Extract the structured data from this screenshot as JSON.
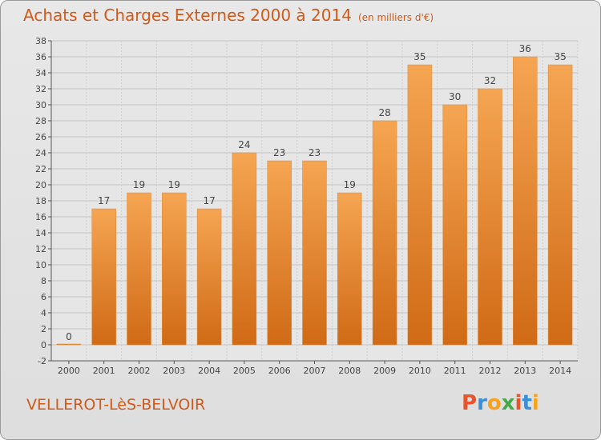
{
  "chart_data": {
    "type": "bar",
    "title": "Achats et Charges Externes 2000 à 2014",
    "subtitle": "(en milliers d'€)",
    "categories": [
      "2000",
      "2001",
      "2002",
      "2003",
      "2004",
      "2005",
      "2006",
      "2007",
      "2008",
      "2009",
      "2010",
      "2011",
      "2012",
      "2013",
      "2014"
    ],
    "values": [
      0,
      17,
      19,
      19,
      17,
      24,
      23,
      23,
      19,
      28,
      35,
      30,
      32,
      36,
      35
    ],
    "ylim": [
      -2,
      38
    ],
    "yticks": [
      -2,
      0,
      2,
      4,
      6,
      8,
      10,
      12,
      14,
      16,
      18,
      20,
      22,
      24,
      26,
      28,
      30,
      32,
      34,
      36,
      38
    ],
    "grid": true,
    "bar_color": "#f09a40",
    "bar_color_dark": "#d8741c"
  },
  "footer": {
    "commune": "VELLEROT-LèS-BELVOIR",
    "logo_text": "Proxiti",
    "logo_colors": [
      "#e8532a",
      "#3b8fd6",
      "#f6a21c",
      "#45a84a",
      "#e8532a",
      "#3b8fd6",
      "#f6a21c"
    ]
  }
}
